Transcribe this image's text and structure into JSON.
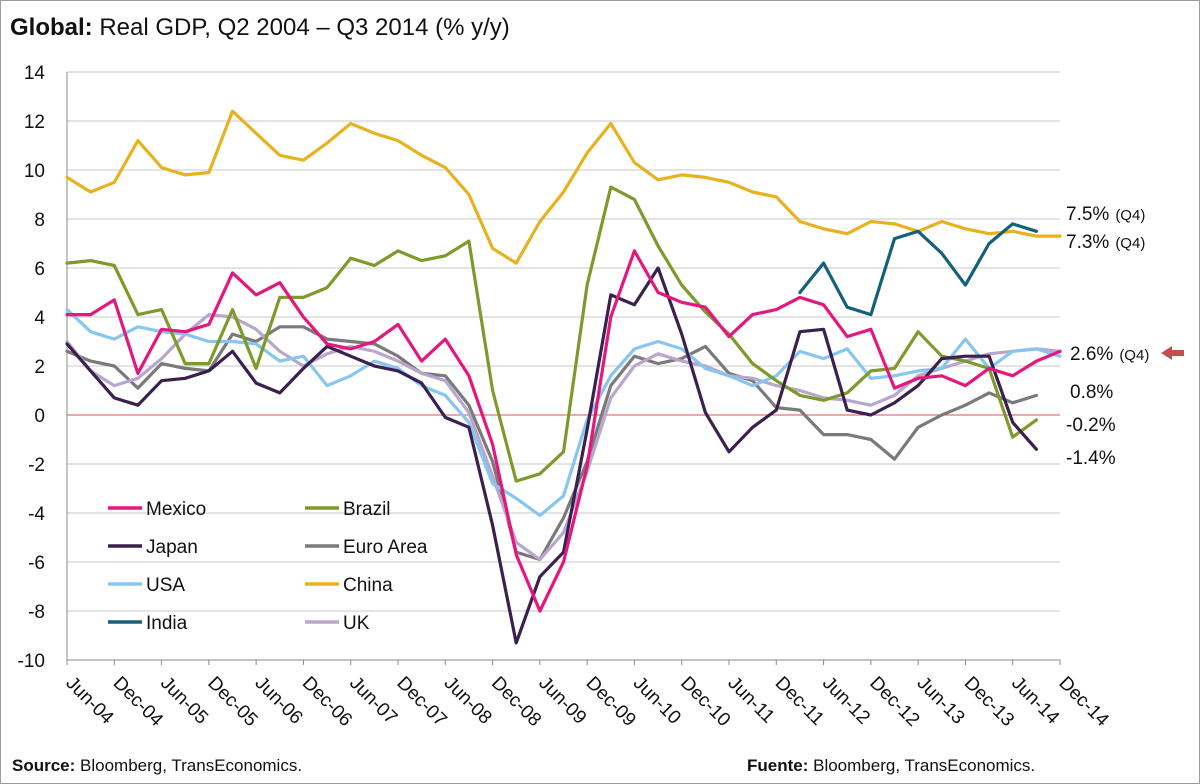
{
  "title": {
    "bold": "Global:",
    "rest": " Real GDP, Q2 2004 – Q3 2014 (% y/y)"
  },
  "source_left": {
    "bold": "Source:",
    "rest": " Bloomberg, TransEconomics."
  },
  "source_right": {
    "bold": "Fuente:",
    "rest": " Bloomberg, TransEconomics."
  },
  "chart_data": {
    "type": "line",
    "ylim": [
      -10,
      14
    ],
    "yticks": [
      14,
      12,
      10,
      8,
      6,
      4,
      2,
      0,
      -2,
      -4,
      -6,
      -8,
      -10
    ],
    "xtick_labels": [
      "Jun-04",
      "Dec-04",
      "Jun-05",
      "Dec-05",
      "Jun-06",
      "Dec-06",
      "Jun-07",
      "Dec-07",
      "Jun-08",
      "Dec-08",
      "Jun-09",
      "Dec-09",
      "Jun-10",
      "Dec-10",
      "Jun-11",
      "Dec-11",
      "Jun-12",
      "Dec-12",
      "Jun-13",
      "Dec-13",
      "Jun-14",
      "Dec-14"
    ],
    "zero_line_color": "#d9534f",
    "series": [
      {
        "name": "Mexico",
        "color": "#e5177e",
        "start": 0,
        "values": [
          4.1,
          4.1,
          4.7,
          1.7,
          3.5,
          3.4,
          3.7,
          5.8,
          4.9,
          5.4,
          4.0,
          2.9,
          2.7,
          3.0,
          3.7,
          2.2,
          3.1,
          1.6,
          -1.2,
          -5.7,
          -8.0,
          -6.0,
          -2.1,
          4.0,
          6.7,
          5.0,
          4.6,
          4.4,
          3.2,
          4.1,
          4.3,
          4.8,
          4.5,
          3.2,
          3.5,
          1.1,
          1.5,
          1.6,
          1.2,
          1.9,
          1.6,
          2.2,
          2.6
        ]
      },
      {
        "name": "Brazil",
        "color": "#7d9a2b",
        "start": 0,
        "values": [
          6.2,
          6.3,
          6.1,
          4.1,
          4.3,
          2.1,
          2.1,
          4.3,
          1.9,
          4.8,
          4.8,
          5.2,
          6.4,
          6.1,
          6.7,
          6.3,
          6.5,
          7.1,
          1.0,
          -2.7,
          -2.4,
          -1.5,
          5.3,
          9.3,
          8.8,
          6.9,
          5.3,
          4.2,
          3.3,
          2.1,
          1.4,
          0.8,
          0.6,
          0.9,
          1.8,
          1.9,
          3.4,
          2.4,
          2.2,
          1.9,
          -0.9,
          -0.2
        ]
      },
      {
        "name": "Japan",
        "color": "#3b1f4f",
        "start": 0,
        "values": [
          2.9,
          1.8,
          0.7,
          0.4,
          1.4,
          1.5,
          1.8,
          2.6,
          1.3,
          0.9,
          1.9,
          2.8,
          2.4,
          2.0,
          1.8,
          1.3,
          -0.1,
          -0.5,
          -4.5,
          -9.3,
          -6.6,
          -5.6,
          -0.6,
          4.9,
          4.5,
          6.0,
          3.3,
          0.1,
          -1.5,
          -0.5,
          0.2,
          3.4,
          3.5,
          0.2,
          0.0,
          0.5,
          1.2,
          2.3,
          2.4,
          2.4,
          -0.3,
          -1.4
        ]
      },
      {
        "name": "Euro Area",
        "color": "#7a7a7a",
        "start": 0,
        "values": [
          2.6,
          2.2,
          2.0,
          1.1,
          2.1,
          1.9,
          1.8,
          3.3,
          3.0,
          3.6,
          3.6,
          3.1,
          3.0,
          2.9,
          2.4,
          1.7,
          1.6,
          0.4,
          -1.9,
          -5.6,
          -5.9,
          -4.2,
          -1.9,
          1.2,
          2.4,
          2.1,
          2.3,
          2.8,
          1.7,
          1.4,
          0.3,
          0.2,
          -0.8,
          -0.8,
          -1.0,
          -1.8,
          -0.5,
          0.0,
          0.4,
          0.9,
          0.5,
          0.8
        ]
      },
      {
        "name": "USA",
        "color": "#87c6f0",
        "start": 0,
        "values": [
          4.3,
          3.4,
          3.1,
          3.6,
          3.4,
          3.3,
          3.0,
          3.0,
          2.9,
          2.2,
          2.4,
          1.2,
          1.6,
          2.2,
          1.9,
          1.2,
          0.8,
          -0.3,
          -2.8,
          -3.4,
          -4.1,
          -3.3,
          -0.2,
          1.6,
          2.7,
          3.0,
          2.7,
          1.9,
          1.6,
          1.2,
          1.6,
          2.6,
          2.3,
          2.7,
          1.5,
          1.6,
          1.8,
          1.9,
          3.1,
          1.9,
          2.6,
          2.7,
          2.4
        ]
      },
      {
        "name": "China",
        "color": "#e8b21e",
        "start": 0,
        "values": [
          9.7,
          9.1,
          9.5,
          11.2,
          10.1,
          9.8,
          9.9,
          12.4,
          11.5,
          10.6,
          10.4,
          11.1,
          11.9,
          11.5,
          11.2,
          10.6,
          10.1,
          9.0,
          6.8,
          6.2,
          7.9,
          9.1,
          10.7,
          11.9,
          10.3,
          9.6,
          9.8,
          9.7,
          9.5,
          9.1,
          8.9,
          7.9,
          7.6,
          7.4,
          7.9,
          7.8,
          7.5,
          7.9,
          7.6,
          7.4,
          7.5,
          7.3,
          7.3
        ]
      },
      {
        "name": "India",
        "color": "#15607a",
        "start": 31,
        "values": [
          5.0,
          6.2,
          4.4,
          4.1,
          7.2,
          7.5,
          6.6,
          5.3,
          7.0,
          7.8,
          7.5
        ]
      },
      {
        "name": "UK",
        "color": "#b8a6cc",
        "start": 0,
        "values": [
          3.0,
          1.8,
          1.2,
          1.5,
          2.3,
          3.3,
          4.1,
          4.0,
          3.5,
          2.6,
          2.0,
          2.5,
          2.8,
          2.6,
          2.2,
          1.7,
          1.4,
          0.1,
          -2.5,
          -5.2,
          -5.9,
          -4.8,
          -2.3,
          0.7,
          2.0,
          2.5,
          2.2,
          2.0,
          1.6,
          1.5,
          1.2,
          1.0,
          0.7,
          0.6,
          0.4,
          0.8,
          1.6,
          1.9,
          2.2,
          2.5,
          2.6,
          2.7,
          2.6
        ]
      }
    ],
    "end_labels": [
      {
        "value": "7.5%",
        "note": "(Q4)"
      },
      {
        "value": "7.3%",
        "note": "(Q4)"
      },
      {
        "value": "2.6%",
        "note": "(Q4)"
      },
      {
        "value": "0.8%",
        "note": ""
      },
      {
        "value": "-0.2%",
        "note": ""
      },
      {
        "value": "-1.4%",
        "note": ""
      }
    ],
    "end_label_arrow_color": "#c0504d"
  }
}
